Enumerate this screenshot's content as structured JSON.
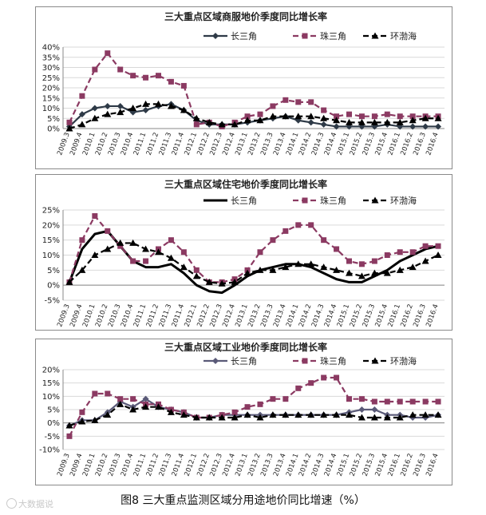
{
  "caption": "图8  三大重点监测区域分用途地价同比增速（%）",
  "watermark": "大数据说",
  "chart_data": [
    {
      "type": "line",
      "title": "三大重点区域商服地价季度同比增长率",
      "categories": [
        "2009.3",
        "2009.4",
        "2010.1",
        "2010.2",
        "2010.3",
        "2010.4",
        "2011.1",
        "2011.2",
        "2011.3",
        "2011.4",
        "2012.1",
        "2012.2",
        "2012.3",
        "2012.4",
        "2013.1",
        "2013.2",
        "2013.3",
        "2013.4",
        "2014.1",
        "2014.2",
        "2014.3",
        "2014.4",
        "2015.1",
        "2015.2",
        "2015.3",
        "2015.4",
        "2016.1",
        "2016.2",
        "2016.3",
        "2016.4"
      ],
      "yticks": [
        "0%",
        "5%",
        "10%",
        "15%",
        "20%",
        "25%",
        "30%",
        "35%",
        "40%"
      ],
      "ylim": [
        0,
        40
      ],
      "series": [
        {
          "name": "长三角",
          "color": "#2e3a47",
          "marker": "diamond",
          "values": [
            1,
            7,
            10,
            11,
            11,
            8,
            9,
            11,
            12,
            9,
            4,
            2,
            2,
            2,
            3,
            4,
            5,
            6,
            4,
            3,
            2,
            1,
            1,
            1,
            1,
            2,
            1,
            1,
            1,
            1
          ]
        },
        {
          "name": "珠三角",
          "color": "#8b3a62",
          "marker": "square",
          "dash": true,
          "values": [
            3,
            16,
            29,
            37,
            29,
            26,
            25,
            26,
            23,
            21,
            2,
            3,
            1,
            3,
            6,
            7,
            11,
            14,
            13,
            13,
            9,
            6,
            7,
            6,
            6,
            7,
            6,
            6,
            6,
            6
          ]
        },
        {
          "name": "环渤海",
          "color": "#000000",
          "marker": "triangle",
          "dash": true,
          "values": [
            0,
            2,
            5,
            7,
            8,
            10,
            12,
            12,
            11,
            9,
            5,
            3,
            2,
            2,
            4,
            4,
            6,
            6,
            6,
            6,
            5,
            4,
            3,
            3,
            3,
            3,
            3,
            4,
            5,
            5
          ]
        }
      ]
    },
    {
      "type": "line",
      "title": "三大重点区域住宅地价季度同比增长率",
      "categories": [
        "2009.3",
        "2009.4",
        "2010.1",
        "2010.2",
        "2010.3",
        "2010.4",
        "2011.1",
        "2011.2",
        "2011.3",
        "2011.4",
        "2012.1",
        "2012.2",
        "2012.3",
        "2012.4",
        "2013.1",
        "2013.2",
        "2013.3",
        "2013.4",
        "2014.1",
        "2014.2",
        "2014.3",
        "2014.4",
        "2015.1",
        "2015.2",
        "2015.3",
        "2015.4",
        "2016.1",
        "2016.2",
        "2016.3",
        "2016.4"
      ],
      "yticks": [
        "-5%",
        "0%",
        "5%",
        "10%",
        "15%",
        "20%",
        "25%"
      ],
      "ylim": [
        -5,
        25
      ],
      "series": [
        {
          "name": "长三角",
          "color": "#000000",
          "marker": "none",
          "thick": true,
          "values": [
            1,
            12,
            17,
            18,
            13,
            8,
            6,
            6,
            7,
            4,
            0,
            -2,
            -2.5,
            0,
            3,
            5,
            6,
            7,
            7,
            6,
            4,
            2,
            1,
            1,
            3,
            5,
            8,
            10,
            12,
            13
          ]
        },
        {
          "name": "珠三角",
          "color": "#8b3a62",
          "marker": "square",
          "dash": true,
          "values": [
            1,
            15,
            23,
            18,
            13,
            8,
            8,
            12,
            15,
            11,
            5,
            1,
            1,
            2,
            5,
            11,
            15,
            18,
            20,
            20,
            15,
            12,
            8,
            7,
            8,
            10,
            11,
            11,
            13,
            13
          ]
        },
        {
          "name": "环渤海",
          "color": "#000000",
          "marker": "triangle",
          "dash": true,
          "values": [
            1,
            5,
            10,
            12,
            14,
            14,
            12,
            11,
            9,
            6,
            3,
            1,
            0.5,
            1,
            4,
            5,
            5,
            6,
            7,
            7,
            6,
            5,
            4,
            3,
            4,
            4,
            5,
            6,
            8,
            10
          ]
        }
      ]
    },
    {
      "type": "line",
      "title": "三大重点区域工业地价季度同比增长率",
      "categories": [
        "2009.3",
        "2009.4",
        "2010.1",
        "2010.2",
        "2010.3",
        "2010.4",
        "2011.1",
        "2011.2",
        "2011.3",
        "2011.4",
        "2012.1",
        "2012.2",
        "2012.3",
        "2012.4",
        "2013.1",
        "2013.2",
        "2013.3",
        "2013.4",
        "2014.1",
        "2014.2",
        "2014.3",
        "2014.4",
        "2015.1",
        "2015.2",
        "2015.3",
        "2015.4",
        "2016.1",
        "2016.2",
        "2016.3",
        "2016.4"
      ],
      "yticks": [
        "-10%",
        "-5%",
        "0%",
        "5%",
        "10%",
        "15%",
        "20%"
      ],
      "ylim": [
        -10,
        20
      ],
      "series": [
        {
          "name": "长三角",
          "color": "#5a5a78",
          "marker": "diamond",
          "values": [
            -1,
            1,
            1,
            4,
            8,
            6,
            9,
            6,
            5,
            4,
            2,
            2,
            3,
            3,
            3,
            3,
            3,
            3,
            3,
            3,
            3,
            3,
            4,
            5,
            5,
            3,
            3,
            2,
            2,
            3
          ]
        },
        {
          "name": "珠三角",
          "color": "#8b3a62",
          "marker": "square",
          "dash": true,
          "values": [
            -5,
            4,
            11,
            11,
            9,
            9,
            7,
            7,
            5,
            4,
            2,
            2,
            3,
            4,
            6,
            7,
            9,
            9,
            13,
            15,
            17,
            17,
            9,
            9,
            8,
            8,
            8,
            8,
            8,
            8
          ]
        },
        {
          "name": "环渤海",
          "color": "#000000",
          "marker": "triangle",
          "dash": true,
          "values": [
            -1,
            0.5,
            1,
            3,
            7,
            5,
            6,
            6,
            4,
            3,
            2,
            2,
            2,
            2,
            3,
            2,
            3,
            3,
            3,
            3,
            3,
            3,
            3,
            2,
            2,
            2,
            2,
            3,
            3,
            3
          ]
        }
      ]
    }
  ]
}
